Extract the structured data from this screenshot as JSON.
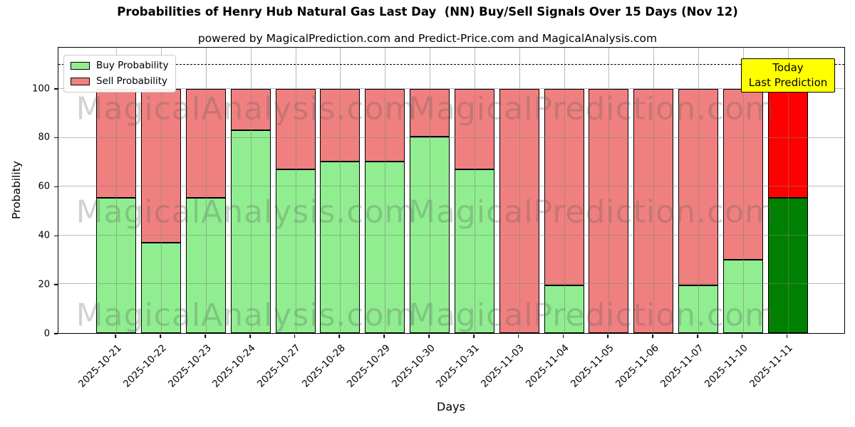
{
  "subtitle": "powered by MagicalPrediction.com and Predict-Price.com and MagicalAnalysis.com",
  "axes": {
    "xlabel": "Days",
    "ylabel": "Probability",
    "yticks": [
      0,
      20,
      40,
      60,
      80,
      100
    ]
  },
  "legend": {
    "items": [
      {
        "label": "Buy Probability",
        "color": "#90ee90"
      },
      {
        "label": "Sell Probability",
        "color": "#f08080"
      }
    ]
  },
  "annotation": {
    "lines": [
      "Today",
      "Last Prediction"
    ],
    "bg": "#ffff00",
    "border_color": "#000000"
  },
  "watermarks": {
    "left": "MagicalAnalysis.com",
    "right": "MagicalPrediction.com"
  },
  "chart_data": {
    "type": "bar",
    "stacked": true,
    "title": "Probabilities of Henry Hub Natural Gas Last Day  (NN) Buy/Sell Signals Over 15 Days (Nov 12)",
    "xlabel": "Days",
    "ylabel": "Probability",
    "categories": [
      "2025-10-21",
      "2025-10-22",
      "2025-10-23",
      "2025-10-24",
      "2025-10-27",
      "2025-10-28",
      "2025-10-29",
      "2025-10-30",
      "2025-10-31",
      "2025-11-03",
      "2025-11-04",
      "2025-11-05",
      "2025-11-06",
      "2025-11-07",
      "2025-11-10",
      "2025-11-11"
    ],
    "series": [
      {
        "name": "Buy Probability",
        "color": "#90ee90",
        "values": [
          55.5,
          37,
          55.5,
          83.3,
          67,
          70.4,
          70.4,
          80.4,
          67,
          0,
          19.5,
          0,
          0,
          19.5,
          30,
          55.5
        ]
      },
      {
        "name": "Sell Probability",
        "color": "#f08080",
        "values": [
          44.5,
          63,
          44.5,
          16.7,
          33,
          29.6,
          29.6,
          19.6,
          33,
          100,
          80.5,
          100,
          100,
          80.5,
          70,
          44.5
        ]
      }
    ],
    "today_index": 15,
    "today_colors": {
      "buy": "#008000",
      "sell": "#ff0000"
    },
    "ylim": [
      0,
      117
    ],
    "ygrid": [
      20,
      40,
      60,
      80,
      100
    ],
    "hline": 110,
    "bar_edge_color": "#000000",
    "grid": true,
    "legend_position": "upper left"
  }
}
